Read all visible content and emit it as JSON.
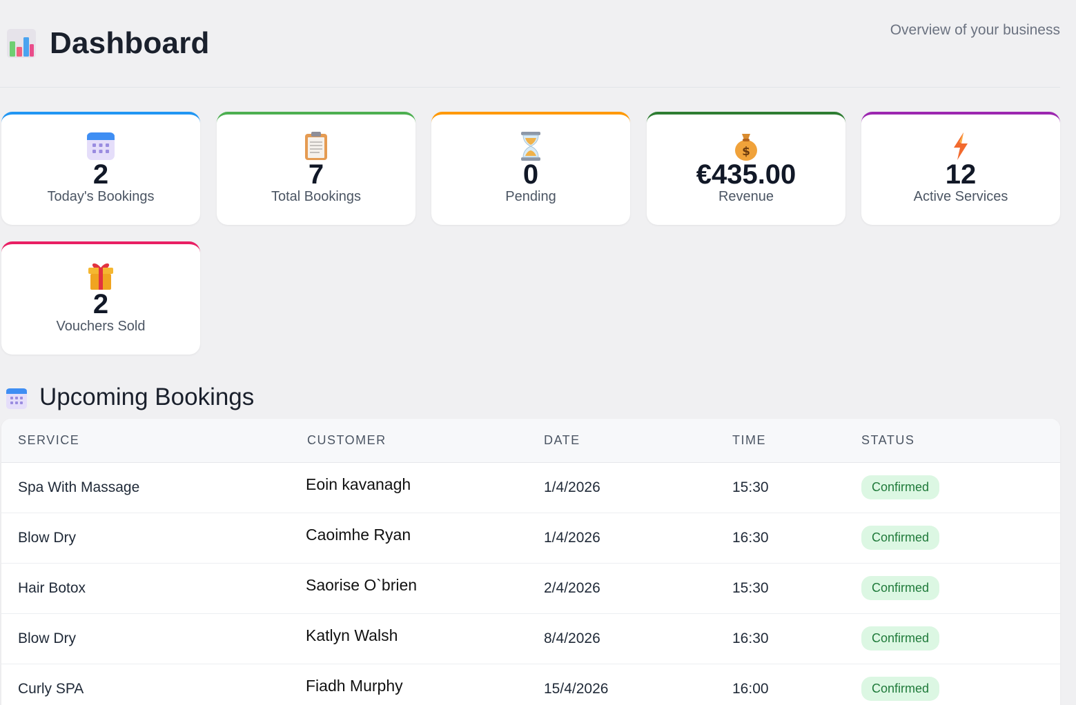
{
  "header": {
    "icon": "bar-chart-icon",
    "title": "Dashboard",
    "subtitle": "Overview of your business"
  },
  "stats": [
    {
      "icon": "calendar-icon",
      "value": "2",
      "label": "Today's Bookings",
      "accent": "#2196f3"
    },
    {
      "icon": "clipboard-icon",
      "value": "7",
      "label": "Total Bookings",
      "accent": "#4caf50"
    },
    {
      "icon": "hourglass-icon",
      "value": "0",
      "label": "Pending",
      "accent": "#ff9800"
    },
    {
      "icon": "money-bag-icon",
      "value": "€435.00",
      "label": "Revenue",
      "accent": "#2e7d32"
    },
    {
      "icon": "lightning-icon",
      "value": "12",
      "label": "Active Services",
      "accent": "#9c27b0"
    },
    {
      "icon": "gift-icon",
      "value": "2",
      "label": "Vouchers Sold",
      "accent": "#e91e63"
    }
  ],
  "upcoming": {
    "icon": "calendar-icon",
    "title": "Upcoming Bookings",
    "columns": [
      "SERVICE",
      "CUSTOMER",
      "DATE",
      "TIME",
      "STATUS"
    ],
    "rows": [
      {
        "service": "Spa With Massage",
        "customer": "Eoin kavanagh",
        "date": "1/4/2026",
        "time": "15:30",
        "status": "Confirmed"
      },
      {
        "service": "Blow Dry",
        "customer": "Caoimhe Ryan",
        "date": "1/4/2026",
        "time": "16:30",
        "status": "Confirmed"
      },
      {
        "service": "Hair Botox",
        "customer": "Saorise O`brien",
        "date": "2/4/2026",
        "time": "15:30",
        "status": "Confirmed"
      },
      {
        "service": "Blow Dry",
        "customer": "Katlyn Walsh",
        "date": "8/4/2026",
        "time": "16:30",
        "status": "Confirmed"
      },
      {
        "service": "Curly SPA",
        "customer": "Fiadh Murphy",
        "date": "15/4/2026",
        "time": "16:00",
        "status": "Confirmed"
      }
    ]
  }
}
